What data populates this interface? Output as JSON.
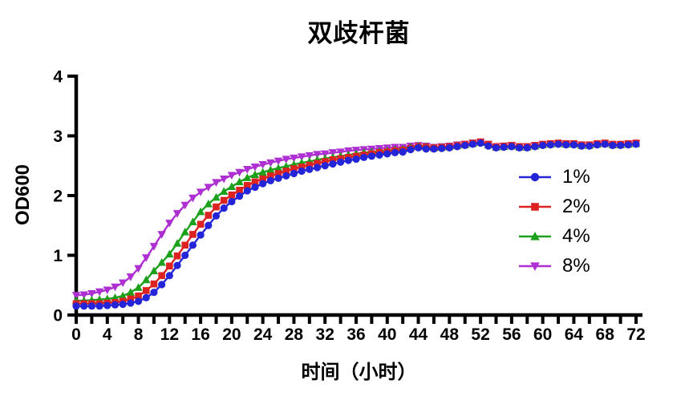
{
  "chart_data": {
    "type": "line",
    "title": "双歧杆菌",
    "xlabel": "时间（小时）",
    "ylabel": "OD600",
    "xlim": [
      0,
      72
    ],
    "ylim": [
      0,
      4
    ],
    "xticks": [
      0,
      4,
      8,
      12,
      16,
      20,
      24,
      28,
      32,
      36,
      40,
      44,
      48,
      52,
      56,
      60,
      64,
      68,
      72
    ],
    "xtick_minor_step": 2,
    "yticks": [
      0,
      1,
      2,
      3,
      4
    ],
    "grid": false,
    "legend_position": "inside-right",
    "x_start": 0,
    "x_step": 1,
    "axis_color": "#000000",
    "series": [
      {
        "name": "1%",
        "color": "#2424d8",
        "marker": "circle",
        "values": [
          0.15,
          0.15,
          0.15,
          0.15,
          0.16,
          0.17,
          0.18,
          0.2,
          0.23,
          0.29,
          0.38,
          0.51,
          0.66,
          0.83,
          1.0,
          1.17,
          1.34,
          1.5,
          1.66,
          1.79,
          1.9,
          1.99,
          2.08,
          2.14,
          2.2,
          2.25,
          2.29,
          2.33,
          2.37,
          2.41,
          2.44,
          2.47,
          2.5,
          2.53,
          2.56,
          2.59,
          2.61,
          2.64,
          2.66,
          2.68,
          2.7,
          2.72,
          2.73,
          2.77,
          2.8,
          2.78,
          2.78,
          2.79,
          2.8,
          2.82,
          2.84,
          2.86,
          2.88,
          2.83,
          2.8,
          2.81,
          2.82,
          2.8,
          2.8,
          2.82,
          2.84,
          2.85,
          2.86,
          2.85,
          2.85,
          2.83,
          2.83,
          2.85,
          2.86,
          2.84,
          2.84,
          2.85,
          2.86
        ]
      },
      {
        "name": "2%",
        "color": "#dd2222",
        "marker": "square",
        "values": [
          0.19,
          0.19,
          0.19,
          0.19,
          0.2,
          0.21,
          0.23,
          0.27,
          0.32,
          0.41,
          0.52,
          0.66,
          0.82,
          0.99,
          1.17,
          1.35,
          1.52,
          1.67,
          1.81,
          1.92,
          2.01,
          2.09,
          2.17,
          2.23,
          2.28,
          2.33,
          2.37,
          2.41,
          2.45,
          2.48,
          2.51,
          2.54,
          2.57,
          2.6,
          2.62,
          2.64,
          2.66,
          2.68,
          2.7,
          2.72,
          2.73,
          2.75,
          2.76,
          2.79,
          2.82,
          2.81,
          2.8,
          2.81,
          2.82,
          2.84,
          2.86,
          2.88,
          2.9,
          2.86,
          2.82,
          2.83,
          2.84,
          2.82,
          2.82,
          2.84,
          2.86,
          2.87,
          2.88,
          2.87,
          2.87,
          2.85,
          2.85,
          2.87,
          2.88,
          2.86,
          2.86,
          2.87,
          2.88
        ]
      },
      {
        "name": "4%",
        "color": "#1ca01c",
        "marker": "triangle-up",
        "values": [
          0.24,
          0.24,
          0.25,
          0.26,
          0.27,
          0.29,
          0.32,
          0.38,
          0.46,
          0.59,
          0.74,
          0.88,
          1.02,
          1.2,
          1.39,
          1.56,
          1.73,
          1.86,
          1.97,
          2.07,
          2.15,
          2.23,
          2.3,
          2.35,
          2.39,
          2.43,
          2.46,
          2.49,
          2.52,
          2.55,
          2.57,
          2.6,
          2.62,
          2.64,
          2.66,
          2.68,
          2.7,
          2.72,
          2.73,
          2.74,
          2.75,
          2.77,
          2.78,
          2.81,
          2.83,
          2.82,
          2.8,
          2.81,
          2.82,
          2.84,
          2.85,
          2.87,
          2.89,
          2.85,
          2.81,
          2.82,
          2.83,
          2.81,
          2.81,
          2.83,
          2.85,
          2.86,
          2.87,
          2.86,
          2.86,
          2.84,
          2.84,
          2.86,
          2.87,
          2.85,
          2.85,
          2.86,
          2.87
        ]
      },
      {
        "name": "8%",
        "color": "#ae2fd2",
        "marker": "triangle-down",
        "values": [
          0.33,
          0.34,
          0.36,
          0.39,
          0.42,
          0.47,
          0.54,
          0.64,
          0.78,
          0.96,
          1.15,
          1.35,
          1.54,
          1.7,
          1.84,
          1.96,
          2.06,
          2.14,
          2.22,
          2.28,
          2.34,
          2.39,
          2.44,
          2.48,
          2.52,
          2.55,
          2.58,
          2.61,
          2.63,
          2.65,
          2.67,
          2.69,
          2.7,
          2.72,
          2.73,
          2.75,
          2.76,
          2.77,
          2.78,
          2.79,
          2.8,
          2.81,
          2.81,
          2.83,
          2.84,
          2.83,
          2.81,
          2.82,
          2.83,
          2.85,
          2.86,
          2.88,
          2.89,
          2.86,
          2.82,
          2.83,
          2.84,
          2.82,
          2.82,
          2.84,
          2.85,
          2.86,
          2.87,
          2.86,
          2.86,
          2.84,
          2.84,
          2.86,
          2.87,
          2.85,
          2.85,
          2.86,
          2.87
        ]
      }
    ]
  }
}
